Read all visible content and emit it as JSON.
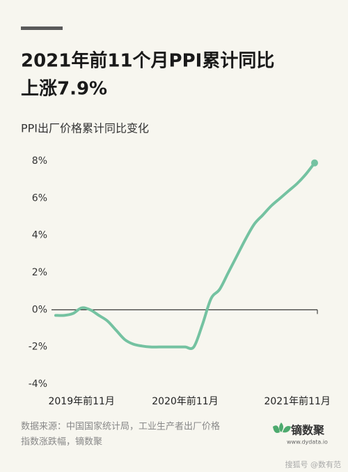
{
  "chart_data": {
    "type": "line",
    "title": [
      "2021年前11个月PPI累计同比",
      "上涨7.9%"
    ],
    "subtitle": "PPI出厂价格累计同比变化",
    "categories": [
      null,
      null,
      null,
      "2019年前11月",
      null,
      null,
      null,
      null,
      null,
      null,
      null,
      null,
      null,
      null,
      null,
      "2020年前11月",
      null,
      null,
      null,
      null,
      null,
      null,
      null,
      null,
      null,
      null,
      null,
      null,
      "2021年前11月",
      null,
      null
    ],
    "series": [
      {
        "name": "PPI累计同比",
        "color": "#74c2a1",
        "values": [
          -0.3,
          -0.3,
          -0.2,
          0.1,
          0.0,
          -0.3,
          -0.6,
          -1.1,
          -1.6,
          -1.85,
          -1.95,
          -2.0,
          -2.0,
          -2.0,
          -2.0,
          -2.0,
          -2.0,
          -0.8,
          0.6,
          1.1,
          2.0,
          2.9,
          3.8,
          4.6,
          5.1,
          5.6,
          6.0,
          6.4,
          6.8,
          7.3,
          7.9
        ]
      }
    ],
    "ylim": [
      -4,
      8
    ],
    "yticks": [
      {
        "value": -4,
        "label": "-4%"
      },
      {
        "value": -2,
        "label": "-2%"
      },
      {
        "value": 0,
        "label": "0%"
      },
      {
        "value": 2,
        "label": "2%"
      },
      {
        "value": 4,
        "label": "4%"
      },
      {
        "value": 6,
        "label": "6%"
      },
      {
        "value": 8,
        "label": "8%"
      }
    ],
    "source": [
      "数据来源：中国国家统计局，工业生产者出厂价格",
      "指数涨跌幅，镝数聚"
    ],
    "logo": {
      "name": "镝数聚",
      "url": "www.dydata.io"
    },
    "watermark": "搜狐号 @数有范"
  }
}
